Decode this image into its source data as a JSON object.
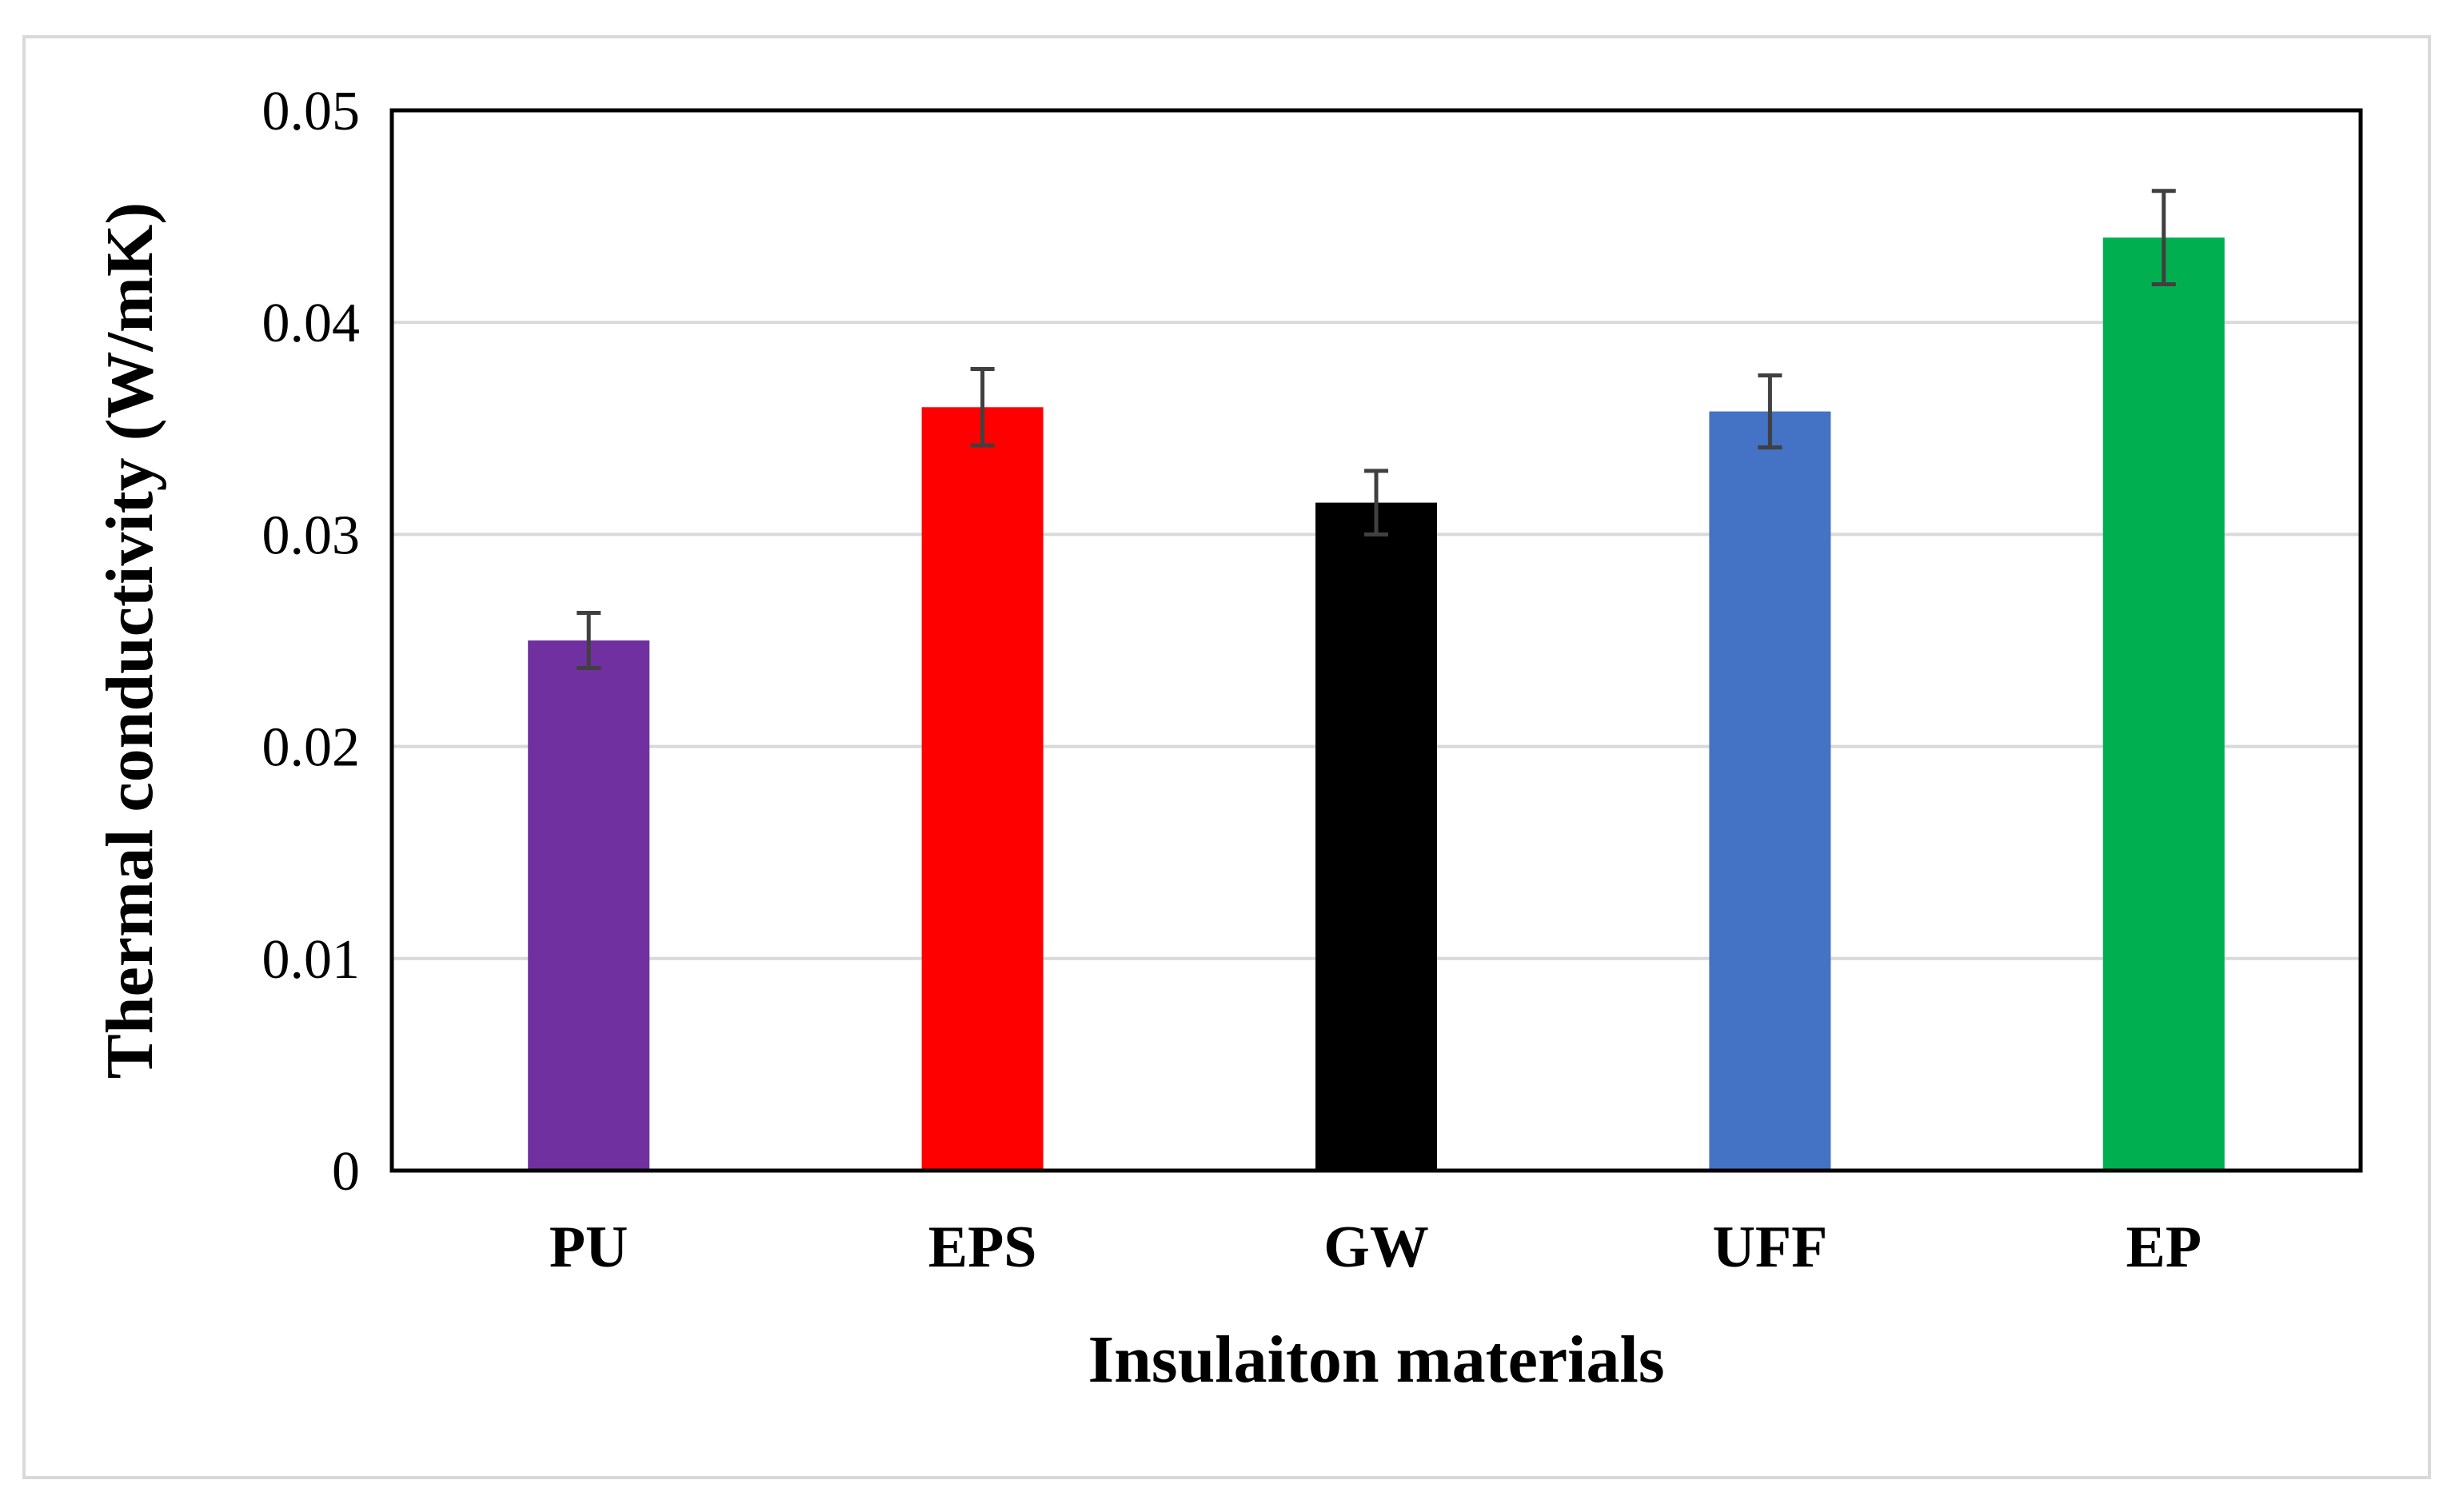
{
  "chart_data": {
    "type": "bar",
    "title": "",
    "categories": [
      "PU",
      "EPS",
      "GW",
      "UFF",
      "EP"
    ],
    "values": [
      0.025,
      0.036,
      0.0315,
      0.0358,
      0.044
    ],
    "errors": [
      0.0013,
      0.0018,
      0.0015,
      0.0017,
      0.0022
    ],
    "colors": [
      "#7030a0",
      "#ff0000",
      "#000000",
      "#4472c4",
      "#00b050"
    ],
    "error_color": "#404040",
    "xlabel": "Insulaiton materials",
    "ylabel": "Thermal conductivity (W/mK)",
    "ylim": [
      0,
      0.05
    ],
    "yticks": [
      0,
      0.01,
      0.02,
      0.03,
      0.04,
      0.05
    ],
    "ytick_labels": [
      "0",
      "0.01",
      "0.02",
      "0.03",
      "0.04",
      "0.05"
    ],
    "grid": true,
    "legend": "none"
  }
}
